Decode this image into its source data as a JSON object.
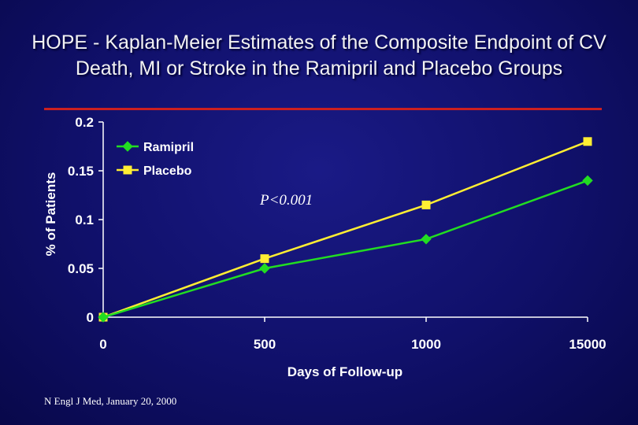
{
  "slide": {
    "title": "HOPE - Kaplan-Meier Estimates of the Composite Endpoint of CV Death, MI or Stroke in the Ramipril and Placebo Groups",
    "annotation": "P<0.001",
    "citation": "N Engl J Med, January 20, 2000"
  },
  "chart_data": {
    "type": "line",
    "categories": [
      "0",
      "500",
      "1000",
      "15000"
    ],
    "series": [
      {
        "name": "Ramipril",
        "values": [
          0,
          0.05,
          0.08,
          0.14
        ],
        "color": "#22dd22",
        "marker": "diamond"
      },
      {
        "name": "Placebo",
        "values": [
          0,
          0.06,
          0.115,
          0.18
        ],
        "color": "#ffee33",
        "marker": "square"
      }
    ],
    "xlabel": "Days of Follow-up",
    "ylabel": "% of Patients",
    "ylim": [
      0,
      0.2
    ],
    "yticks": [
      "0",
      "0.05",
      "0.1",
      "0.15",
      "0.2"
    ],
    "grid": false,
    "legend": "top-left"
  }
}
